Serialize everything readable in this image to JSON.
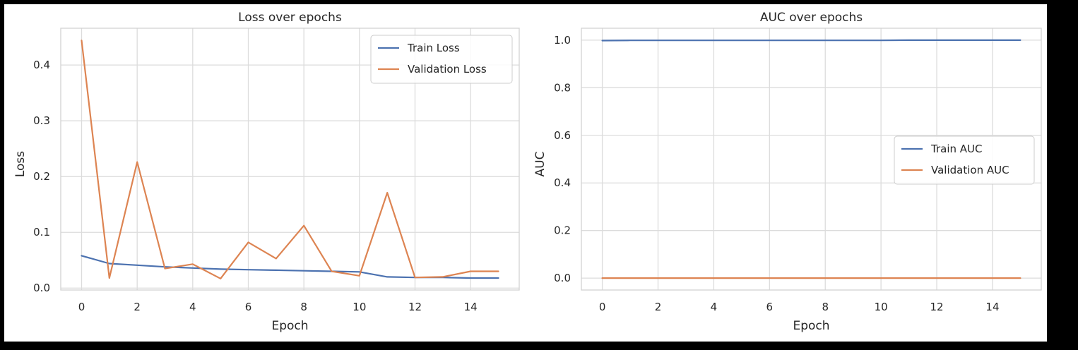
{
  "chart_data": [
    {
      "type": "line",
      "title": "Loss over epochs",
      "xlabel": "Epoch",
      "ylabel": "Loss",
      "x": [
        0,
        1,
        2,
        3,
        4,
        5,
        6,
        7,
        8,
        9,
        10,
        11,
        12,
        13,
        14,
        15
      ],
      "xlim": [
        -0.75,
        15.75
      ],
      "ylim": [
        -0.0035,
        0.466
      ],
      "xticks": [
        0,
        2,
        4,
        6,
        8,
        10,
        12,
        14
      ],
      "xticklabels": [
        "0",
        "2",
        "4",
        "6",
        "8",
        "10",
        "12",
        "14"
      ],
      "yticks": [
        0.0,
        0.1,
        0.2,
        0.3,
        0.4
      ],
      "yticklabels": [
        "0.0",
        "0.1",
        "0.2",
        "0.3",
        "0.4"
      ],
      "grid": true,
      "legend_position": "upper right",
      "series": [
        {
          "name": "Train Loss",
          "color": "#4C72B0",
          "values": [
            0.058,
            0.044,
            0.041,
            0.038,
            0.036,
            0.034,
            0.033,
            0.032,
            0.031,
            0.03,
            0.029,
            0.02,
            0.019,
            0.019,
            0.018,
            0.018
          ]
        },
        {
          "name": "Validation Loss",
          "color": "#DD8452",
          "values": [
            0.444,
            0.018,
            0.226,
            0.035,
            0.043,
            0.017,
            0.082,
            0.053,
            0.112,
            0.03,
            0.022,
            0.171,
            0.019,
            0.02,
            0.03,
            0.03
          ]
        }
      ]
    },
    {
      "type": "line",
      "title": "AUC over epochs",
      "xlabel": "Epoch",
      "ylabel": "AUC",
      "x": [
        0,
        1,
        2,
        3,
        4,
        5,
        6,
        7,
        8,
        9,
        10,
        11,
        12,
        13,
        14,
        15
      ],
      "xlim": [
        -0.75,
        15.75
      ],
      "ylim": [
        -0.05,
        1.05
      ],
      "xticks": [
        0,
        2,
        4,
        6,
        8,
        10,
        12,
        14
      ],
      "xticklabels": [
        "0",
        "2",
        "4",
        "6",
        "8",
        "10",
        "12",
        "14"
      ],
      "yticks": [
        0.0,
        0.2,
        0.4,
        0.6,
        0.8,
        1.0
      ],
      "yticklabels": [
        "0.0",
        "0.2",
        "0.4",
        "0.6",
        "0.8",
        "1.0"
      ],
      "grid": true,
      "legend_position": "center right",
      "series": [
        {
          "name": "Train AUC",
          "color": "#4C72B0",
          "values": [
            0.998,
            0.999,
            0.999,
            0.999,
            0.999,
            0.999,
            0.999,
            0.999,
            0.999,
            0.999,
            0.999,
            1.0,
            1.0,
            1.0,
            1.0,
            1.0
          ]
        },
        {
          "name": "Validation AUC",
          "color": "#DD8452",
          "values": [
            0,
            0,
            0,
            0,
            0,
            0,
            0,
            0,
            0,
            0,
            0,
            0,
            0,
            0,
            0,
            0
          ]
        }
      ]
    }
  ]
}
